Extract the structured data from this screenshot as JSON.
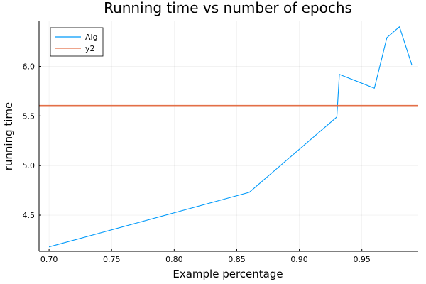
{
  "chart_data": {
    "type": "line",
    "title": "Running time vs number of epochs",
    "xlabel": "Example percentage",
    "ylabel": "running time",
    "xlim": [
      0.692,
      0.995
    ],
    "ylim": [
      4.135,
      6.455
    ],
    "x_ticks": [
      0.7,
      0.75,
      0.8,
      0.85,
      0.9,
      0.95
    ],
    "x_tick_labels": [
      "0.70",
      "0.75",
      "0.80",
      "0.85",
      "0.90",
      "0.95"
    ],
    "y_ticks": [
      4.5,
      5.0,
      5.5,
      6.0
    ],
    "y_tick_labels": [
      "4.5",
      "5.0",
      "5.5",
      "6.0"
    ],
    "grid": true,
    "legend_position": "top-left",
    "series": [
      {
        "name": "Alg",
        "color": "#009AFA",
        "x": [
          0.7,
          0.86,
          0.93,
          0.932,
          0.96,
          0.97,
          0.98,
          0.99
        ],
        "y": [
          4.18,
          4.73,
          5.49,
          5.92,
          5.78,
          6.29,
          6.4,
          6.01
        ]
      },
      {
        "name": "y2",
        "color": "#E36F47",
        "x": [
          0.692,
          0.995
        ],
        "y": [
          5.605,
          5.605
        ]
      }
    ]
  }
}
